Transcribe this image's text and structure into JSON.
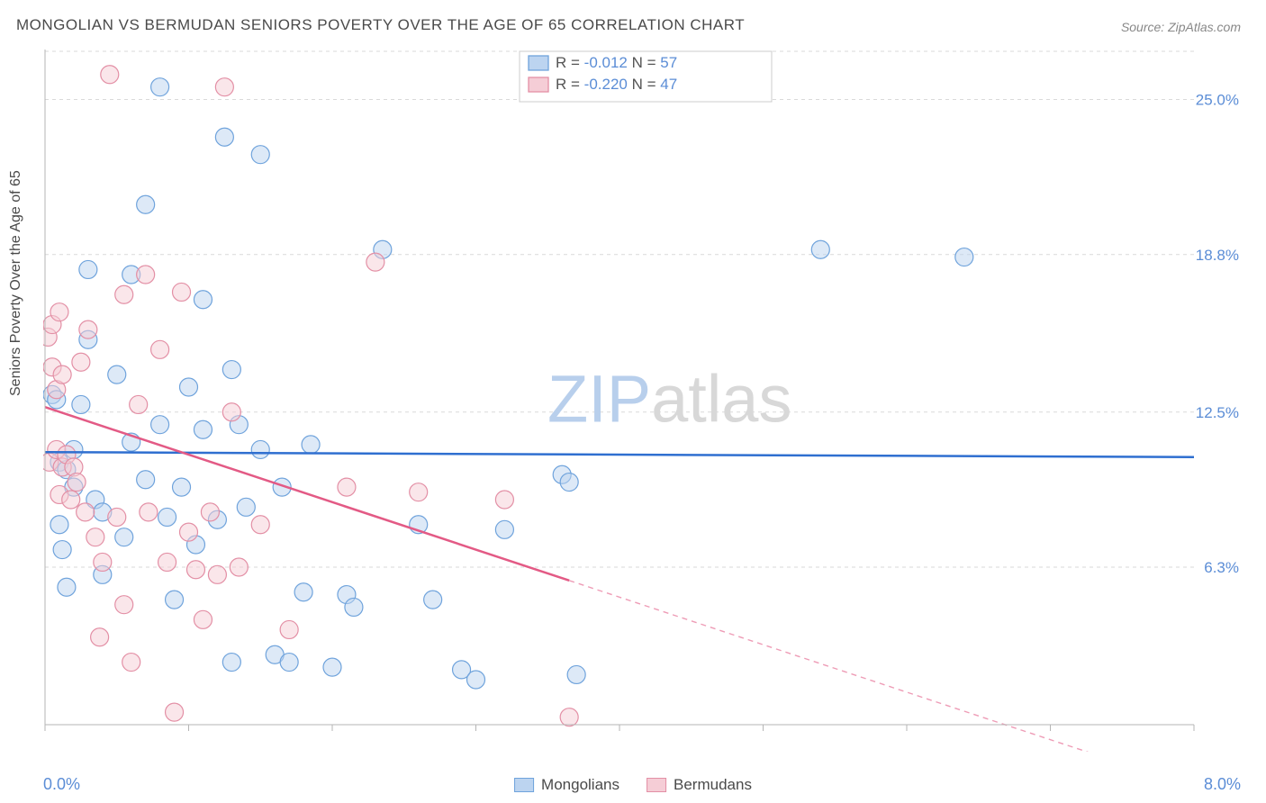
{
  "title": "MONGOLIAN VS BERMUDAN SENIORS POVERTY OVER THE AGE OF 65 CORRELATION CHART",
  "source": "Source: ZipAtlas.com",
  "ylabel": "Seniors Poverty Over the Age of 65",
  "watermark_a": "ZIP",
  "watermark_b": "atlas",
  "chart": {
    "type": "scatter",
    "background_color": "#ffffff",
    "grid_color": "#d9d9d9",
    "grid_dash": "4,4",
    "axis_color": "#b5b5b5",
    "label_color": "#5b8dd6",
    "text_color": "#4a4a4a",
    "marker_radius": 10,
    "marker_opacity": 0.5,
    "line_width": 2.5,
    "xlim": [
      0,
      8
    ],
    "ylim": [
      0,
      27
    ],
    "xtick_step": 1,
    "xlabel_min": "0.0%",
    "xlabel_max": "8.0%",
    "yticks": [
      {
        "v": 6.3,
        "label": "6.3%"
      },
      {
        "v": 12.5,
        "label": "12.5%"
      },
      {
        "v": 18.8,
        "label": "18.8%"
      },
      {
        "v": 25.0,
        "label": "25.0%"
      }
    ],
    "series": [
      {
        "key": "mongolians",
        "label": "Mongolians",
        "color_fill": "#bcd4f0",
        "color_stroke": "#6fa3dc",
        "line_color": "#2f6fd0",
        "R": "-0.012",
        "N": "57",
        "regression": {
          "x1": 0,
          "y1": 10.9,
          "x2": 8,
          "y2": 10.7,
          "solid_until_x": 8
        },
        "points": [
          [
            0.05,
            13.2
          ],
          [
            0.08,
            13.0
          ],
          [
            0.1,
            10.5
          ],
          [
            0.1,
            8.0
          ],
          [
            0.12,
            7.0
          ],
          [
            0.15,
            5.5
          ],
          [
            0.15,
            10.2
          ],
          [
            0.2,
            9.5
          ],
          [
            0.2,
            11.0
          ],
          [
            0.25,
            12.8
          ],
          [
            0.3,
            18.2
          ],
          [
            0.3,
            15.4
          ],
          [
            0.35,
            9.0
          ],
          [
            0.4,
            8.5
          ],
          [
            0.4,
            6.0
          ],
          [
            0.5,
            14.0
          ],
          [
            0.55,
            7.5
          ],
          [
            0.6,
            18.0
          ],
          [
            0.6,
            11.3
          ],
          [
            0.7,
            20.8
          ],
          [
            0.7,
            9.8
          ],
          [
            0.8,
            25.5
          ],
          [
            0.8,
            12.0
          ],
          [
            0.85,
            8.3
          ],
          [
            0.9,
            5.0
          ],
          [
            0.95,
            9.5
          ],
          [
            1.0,
            13.5
          ],
          [
            1.05,
            7.2
          ],
          [
            1.1,
            17.0
          ],
          [
            1.1,
            11.8
          ],
          [
            1.2,
            8.2
          ],
          [
            1.25,
            23.5
          ],
          [
            1.3,
            14.2
          ],
          [
            1.3,
            2.5
          ],
          [
            1.35,
            12.0
          ],
          [
            1.4,
            8.7
          ],
          [
            1.5,
            22.8
          ],
          [
            1.5,
            11.0
          ],
          [
            1.6,
            2.8
          ],
          [
            1.65,
            9.5
          ],
          [
            1.7,
            2.5
          ],
          [
            1.8,
            5.3
          ],
          [
            1.85,
            11.2
          ],
          [
            2.0,
            2.3
          ],
          [
            2.1,
            5.2
          ],
          [
            2.15,
            4.7
          ],
          [
            2.35,
            19.0
          ],
          [
            2.6,
            8.0
          ],
          [
            2.7,
            5.0
          ],
          [
            2.9,
            2.2
          ],
          [
            3.0,
            1.8
          ],
          [
            3.2,
            7.8
          ],
          [
            3.6,
            10.0
          ],
          [
            3.65,
            9.7
          ],
          [
            3.7,
            2.0
          ],
          [
            5.4,
            19.0
          ],
          [
            6.4,
            18.7
          ]
        ]
      },
      {
        "key": "bermudans",
        "label": "Bermudans",
        "color_fill": "#f5cdd6",
        "color_stroke": "#e38fa5",
        "line_color": "#e35a85",
        "R": "-0.220",
        "N": "47",
        "regression": {
          "x1": 0,
          "y1": 12.7,
          "x2": 8,
          "y2": -2.5,
          "solid_until_x": 3.65
        },
        "points": [
          [
            0.02,
            15.5
          ],
          [
            0.03,
            10.5
          ],
          [
            0.05,
            16.0
          ],
          [
            0.05,
            14.3
          ],
          [
            0.08,
            13.4
          ],
          [
            0.08,
            11.0
          ],
          [
            0.1,
            16.5
          ],
          [
            0.1,
            9.2
          ],
          [
            0.12,
            14.0
          ],
          [
            0.12,
            10.3
          ],
          [
            0.15,
            10.8
          ],
          [
            0.18,
            9.0
          ],
          [
            0.2,
            10.3
          ],
          [
            0.22,
            9.7
          ],
          [
            0.25,
            14.5
          ],
          [
            0.28,
            8.5
          ],
          [
            0.3,
            15.8
          ],
          [
            0.35,
            7.5
          ],
          [
            0.38,
            3.5
          ],
          [
            0.4,
            6.5
          ],
          [
            0.45,
            26.0
          ],
          [
            0.5,
            8.3
          ],
          [
            0.55,
            17.2
          ],
          [
            0.55,
            4.8
          ],
          [
            0.6,
            2.5
          ],
          [
            0.65,
            12.8
          ],
          [
            0.7,
            18.0
          ],
          [
            0.72,
            8.5
          ],
          [
            0.8,
            15.0
          ],
          [
            0.85,
            6.5
          ],
          [
            0.9,
            0.5
          ],
          [
            0.95,
            17.3
          ],
          [
            1.0,
            7.7
          ],
          [
            1.05,
            6.2
          ],
          [
            1.1,
            4.2
          ],
          [
            1.15,
            8.5
          ],
          [
            1.2,
            6.0
          ],
          [
            1.25,
            25.5
          ],
          [
            1.3,
            12.5
          ],
          [
            1.35,
            6.3
          ],
          [
            1.5,
            8.0
          ],
          [
            1.7,
            3.8
          ],
          [
            2.1,
            9.5
          ],
          [
            2.3,
            18.5
          ],
          [
            2.6,
            9.3
          ],
          [
            3.2,
            9.0
          ],
          [
            3.65,
            0.3
          ]
        ]
      }
    ]
  },
  "legend": {
    "items": [
      {
        "label": "Mongolians",
        "fill": "#bcd4f0",
        "stroke": "#6fa3dc"
      },
      {
        "label": "Bermudans",
        "fill": "#f5cdd6",
        "stroke": "#e38fa5"
      }
    ]
  }
}
